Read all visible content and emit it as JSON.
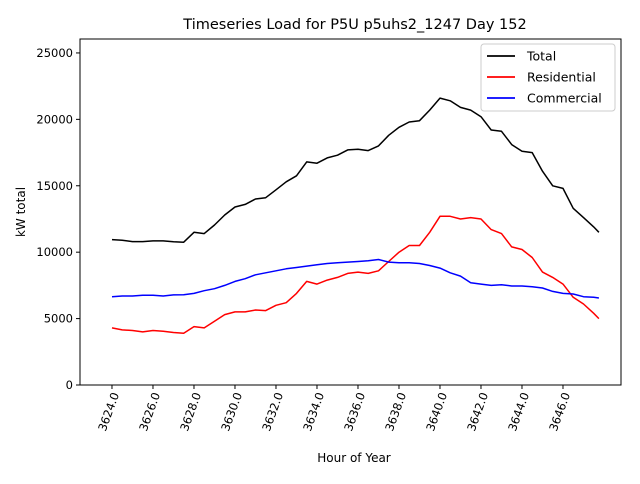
{
  "chart_data": {
    "type": "line",
    "title": "Timeseries Load for P5U p5uhs2_1247  Day 152",
    "xlabel": "Hour of Year",
    "ylabel": "kW total",
    "xlim": [
      3622.44,
      3648.83
    ],
    "ylim": [
      0,
      26050
    ],
    "xticks": [
      3624,
      3626,
      3628,
      3630,
      3632,
      3634,
      3636,
      3638,
      3640,
      3642,
      3644,
      3646
    ],
    "xtick_labels": [
      "3624.0",
      "3626.0",
      "3628.0",
      "3630.0",
      "3632.0",
      "3634.0",
      "3636.0",
      "3638.0",
      "3640.0",
      "3642.0",
      "3644.0",
      "3646.0"
    ],
    "yticks": [
      0,
      5000,
      10000,
      15000,
      20000,
      25000
    ],
    "ytick_labels": [
      "0",
      "5000",
      "10000",
      "15000",
      "20000",
      "25000"
    ],
    "grid": false,
    "legend_position": "top-right",
    "x": [
      3624,
      3624.5,
      3625,
      3625.5,
      3626,
      3626.5,
      3627,
      3627.5,
      3628,
      3628.5,
      3629,
      3629.5,
      3630,
      3630.5,
      3631,
      3631.5,
      3632,
      3632.5,
      3633,
      3633.5,
      3634,
      3634.5,
      3635,
      3635.5,
      3636,
      3636.5,
      3637,
      3637.5,
      3638,
      3638.5,
      3639,
      3639.5,
      3640,
      3640.5,
      3641,
      3641.5,
      3642,
      3642.5,
      3643,
      3643.5,
      3644,
      3644.5,
      3645,
      3645.5,
      3646,
      3646.5,
      3647,
      3647.5,
      3647.75
    ],
    "series": [
      {
        "name": "Total",
        "color": "#000000",
        "values": [
          10950,
          10900,
          10800,
          10800,
          10850,
          10850,
          10780,
          10750,
          11500,
          11400,
          12050,
          12800,
          13400,
          13600,
          14000,
          14100,
          14700,
          15300,
          15750,
          16800,
          16700,
          17100,
          17300,
          17700,
          17750,
          17650,
          18000,
          18800,
          19400,
          19800,
          19900,
          20700,
          21600,
          21400,
          20900,
          20700,
          20200,
          19200,
          19100,
          18100,
          17600,
          17500,
          16100,
          15000,
          14800,
          13300,
          12600,
          11900,
          11500
        ]
      },
      {
        "name": "Residential",
        "color": "#ff0000",
        "values": [
          4300,
          4150,
          4100,
          4000,
          4100,
          4050,
          3950,
          3900,
          4400,
          4300,
          4800,
          5300,
          5500,
          5500,
          5650,
          5600,
          6000,
          6200,
          6900,
          7800,
          7600,
          7900,
          8100,
          8400,
          8500,
          8400,
          8600,
          9300,
          10000,
          10500,
          10500,
          11500,
          12700,
          12700,
          12500,
          12600,
          12500,
          11700,
          11400,
          10400,
          10200,
          9600,
          8500,
          8100,
          7600,
          6600,
          6100,
          5400,
          5000
        ]
      },
      {
        "name": "Commercial",
        "color": "#0000ff",
        "values": [
          6650,
          6700,
          6700,
          6750,
          6750,
          6700,
          6780,
          6800,
          6900,
          7100,
          7250,
          7500,
          7800,
          8000,
          8300,
          8450,
          8600,
          8750,
          8850,
          8950,
          9050,
          9150,
          9200,
          9250,
          9300,
          9350,
          9450,
          9250,
          9200,
          9200,
          9150,
          9000,
          8800,
          8450,
          8200,
          7700,
          7600,
          7500,
          7550,
          7450,
          7450,
          7400,
          7300,
          7050,
          6900,
          6850,
          6650,
          6600,
          6550
        ]
      }
    ]
  }
}
